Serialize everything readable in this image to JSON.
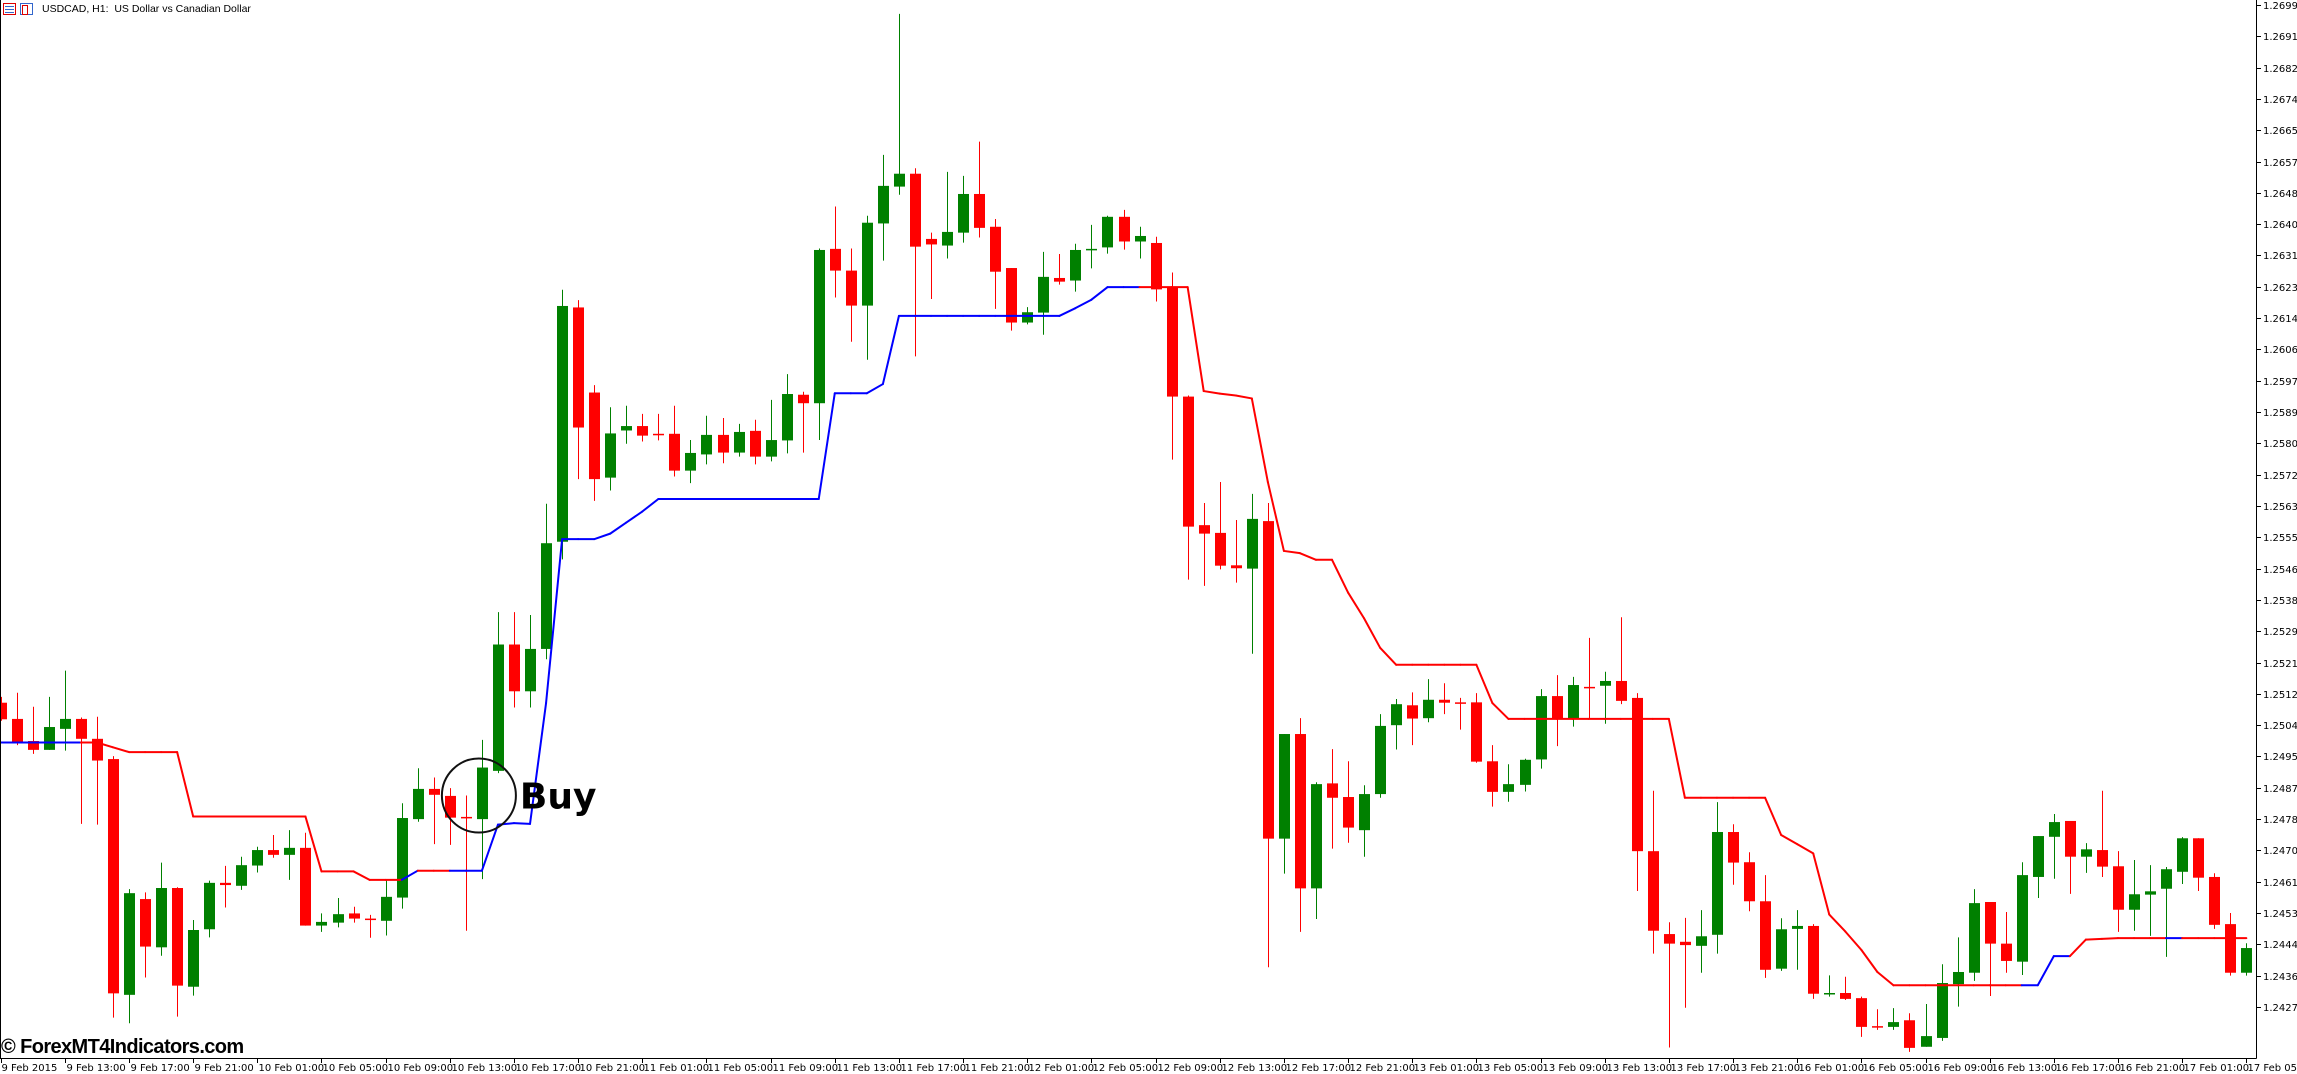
{
  "window": {
    "title": "USDCAD, H1:  US Dollar vs Canadian Dollar",
    "icons": [
      "list-window-icon",
      "tile-window-icon"
    ]
  },
  "watermark": "© ForexMT4Indicators.com",
  "colors": {
    "bull": "#008000",
    "bear": "#ff0000",
    "trend_up": "#0000ff",
    "trend_down": "#ff0000",
    "axis": "#000000",
    "background": "#ffffff"
  },
  "chart_data": {
    "type": "candlestick",
    "symbol": "USDCAD",
    "timeframe": "H1",
    "title": "USDCAD, H1:  US Dollar vs Canadian Dollar",
    "ylim": [
      1.2424,
      1.27009
    ],
    "grid": false,
    "y_ticks": [
      "1.26995",
      "1.26910",
      "1.26825",
      "1.26740",
      "1.26655",
      "1.26570",
      "1.26485",
      "1.26400",
      "1.26315",
      "1.26230",
      "1.26145",
      "1.26060",
      "1.25975",
      "1.25890",
      "1.25805",
      "1.25720",
      "1.25635",
      "1.25550",
      "1.25465",
      "1.25380",
      "1.25295",
      "1.25210",
      "1.25125",
      "1.25040",
      "1.24955",
      "1.24870",
      "1.24785",
      "1.24700",
      "1.24615",
      "1.24530",
      "1.24445",
      "1.24360",
      "1.24275"
    ],
    "x_ticks": [
      "9 Feb 2015",
      "9 Feb 13:00",
      "9 Feb 17:00",
      "9 Feb 21:00",
      "10 Feb 01:00",
      "10 Feb 05:00",
      "10 Feb 09:00",
      "10 Feb 13:00",
      "10 Feb 17:00",
      "10 Feb 21:00",
      "11 Feb 01:00",
      "11 Feb 05:00",
      "11 Feb 09:00",
      "11 Feb 13:00",
      "11 Feb 17:00",
      "11 Feb 21:00",
      "12 Feb 01:00",
      "12 Feb 05:00",
      "12 Feb 09:00",
      "12 Feb 13:00",
      "12 Feb 17:00",
      "12 Feb 21:00",
      "13 Feb 01:00",
      "13 Feb 05:00",
      "13 Feb 09:00",
      "13 Feb 13:00",
      "13 Feb 17:00",
      "13 Feb 21:00",
      "16 Feb 01:00",
      "16 Feb 05:00",
      "16 Feb 09:00",
      "16 Feb 13:00",
      "16 Feb 17:00",
      "16 Feb 21:00",
      "17 Feb 01:00",
      "17 Feb 05:00"
    ],
    "x_tick_every_bars": 4,
    "ohlc_fields": [
      "open",
      "high",
      "low",
      "close"
    ],
    "candles": [
      [
        1.25101,
        1.25117,
        1.25052,
        1.25056
      ],
      [
        1.25057,
        1.25128,
        1.24986,
        1.24993
      ],
      [
        1.24997,
        1.2509,
        1.24962,
        1.24973
      ],
      [
        1.24973,
        1.25117,
        1.24973,
        1.25035
      ],
      [
        1.2503,
        1.25188,
        1.24971,
        1.25057
      ],
      [
        1.25057,
        1.25061,
        1.24772,
        1.25003
      ],
      [
        1.25003,
        1.25063,
        1.2477,
        1.24944
      ],
      [
        1.24948,
        1.24956,
        1.24246,
        1.24312
      ],
      [
        1.24308,
        1.24595,
        1.24231,
        1.24584
      ],
      [
        1.24568,
        1.24586,
        1.24355,
        1.24439
      ],
      [
        1.24437,
        1.24667,
        1.24414,
        1.24598
      ],
      [
        1.24598,
        1.246,
        1.24249,
        1.24333
      ],
      [
        1.2433,
        1.24511,
        1.24306,
        1.24484
      ],
      [
        1.24486,
        1.24618,
        1.24464,
        1.24612
      ],
      [
        1.24612,
        1.24658,
        1.24545,
        1.24606
      ],
      [
        1.24604,
        1.24683,
        1.24593,
        1.2466
      ],
      [
        1.24659,
        1.2471,
        1.2464,
        1.24701
      ],
      [
        1.24701,
        1.24742,
        1.2468,
        1.24688
      ],
      [
        1.24688,
        1.24755,
        1.2462,
        1.24707
      ],
      [
        1.24707,
        1.24748,
        1.24496,
        1.24496
      ],
      [
        1.24496,
        1.24529,
        1.24479,
        1.24506
      ],
      [
        1.24504,
        1.24571,
        1.24491,
        1.24527
      ],
      [
        1.24529,
        1.24547,
        1.24504,
        1.24515
      ],
      [
        1.24515,
        1.24525,
        1.24463,
        1.24513
      ],
      [
        1.24509,
        1.2462,
        1.24469,
        1.24574
      ],
      [
        1.24572,
        1.24828,
        1.24542,
        1.24788
      ],
      [
        1.24785,
        1.24923,
        1.24778,
        1.24867
      ],
      [
        1.24867,
        1.24898,
        1.24717,
        1.24851
      ],
      [
        1.24848,
        1.24869,
        1.24715,
        1.24789
      ],
      [
        1.24791,
        1.24849,
        1.24482,
        1.24788
      ],
      [
        1.24785,
        1.25,
        1.24622,
        1.24925
      ],
      [
        1.24916,
        1.25347,
        1.2491,
        1.25259
      ],
      [
        1.25259,
        1.25347,
        1.25088,
        1.25132
      ],
      [
        1.25132,
        1.25339,
        1.25088,
        1.25247
      ],
      [
        1.25247,
        1.25641,
        1.25219,
        1.25534
      ],
      [
        1.25538,
        1.26222,
        1.2549,
        1.26178
      ],
      [
        1.26174,
        1.26194,
        1.25708,
        1.25848
      ],
      [
        1.25943,
        1.25963,
        1.25649,
        1.25708
      ],
      [
        1.25712,
        1.25903,
        1.25677,
        1.25832
      ],
      [
        1.2584,
        1.25907,
        1.25804,
        1.25852
      ],
      [
        1.25852,
        1.25885,
        1.2581,
        1.25826
      ],
      [
        1.25831,
        1.25885,
        1.25813,
        1.25829
      ],
      [
        1.25831,
        1.25907,
        1.25715,
        1.25731
      ],
      [
        1.25731,
        1.25814,
        1.25697,
        1.25779
      ],
      [
        1.25775,
        1.2588,
        1.25748,
        1.25828
      ],
      [
        1.25828,
        1.25874,
        1.25751,
        1.2578
      ],
      [
        1.2578,
        1.25858,
        1.25769,
        1.25836
      ],
      [
        1.25839,
        1.25869,
        1.25748,
        1.25769
      ],
      [
        1.25769,
        1.25923,
        1.25756,
        1.25814
      ],
      [
        1.25813,
        1.25993,
        1.25778,
        1.25939
      ],
      [
        1.25937,
        1.25945,
        1.2578,
        1.25914
      ],
      [
        1.25914,
        1.26334,
        1.25814,
        1.2633
      ],
      [
        1.26333,
        1.26448,
        1.26201,
        1.26274
      ],
      [
        1.26274,
        1.26334,
        1.26081,
        1.26179
      ],
      [
        1.26179,
        1.26423,
        1.26032,
        1.26404
      ],
      [
        1.26402,
        1.26588,
        1.26301,
        1.26504
      ],
      [
        1.26502,
        1.26971,
        1.2648,
        1.26537
      ],
      [
        1.26537,
        1.26552,
        1.26041,
        1.26339
      ],
      [
        1.2636,
        1.26377,
        1.26197,
        1.26345
      ],
      [
        1.26342,
        1.26542,
        1.26307,
        1.26379
      ],
      [
        1.26377,
        1.26531,
        1.2635,
        1.26482
      ],
      [
        1.26482,
        1.26624,
        1.26364,
        1.2639
      ],
      [
        1.26393,
        1.26414,
        1.2617,
        1.26271
      ],
      [
        1.26281,
        1.26281,
        1.26111,
        1.26133
      ],
      [
        1.26133,
        1.26175,
        1.26128,
        1.26161
      ],
      [
        1.2616,
        1.26325,
        1.261,
        1.26257
      ],
      [
        1.26254,
        1.26319,
        1.26236,
        1.26244
      ],
      [
        1.26247,
        1.26347,
        1.26217,
        1.2633
      ],
      [
        1.26329,
        1.26398,
        1.2628,
        1.26333
      ],
      [
        1.26337,
        1.26423,
        1.2632,
        1.2642
      ],
      [
        1.2642,
        1.26439,
        1.26331,
        1.26353
      ],
      [
        1.26353,
        1.26393,
        1.26307,
        1.26368
      ],
      [
        1.26349,
        1.26366,
        1.2619,
        1.26223
      ],
      [
        1.26228,
        1.26269,
        1.25761,
        1.25932
      ],
      [
        1.25932,
        1.25935,
        1.25435,
        1.25579
      ],
      [
        1.25583,
        1.25643,
        1.25418,
        1.2556
      ],
      [
        1.25562,
        1.257,
        1.25463,
        1.25473
      ],
      [
        1.25474,
        1.25597,
        1.25427,
        1.25466
      ],
      [
        1.25465,
        1.25668,
        1.25234,
        1.256
      ],
      [
        1.25594,
        1.25643,
        1.24383,
        1.24732
      ],
      [
        1.24732,
        1.25016,
        1.24637,
        1.25016
      ],
      [
        1.25016,
        1.25059,
        1.24479,
        1.24597
      ],
      [
        1.24597,
        1.24885,
        1.24514,
        1.2488
      ],
      [
        1.24882,
        1.24975,
        1.24705,
        1.24843
      ],
      [
        1.24845,
        1.24942,
        1.24721,
        1.24762
      ],
      [
        1.24755,
        1.24877,
        1.24683,
        1.24853
      ],
      [
        1.24853,
        1.2507,
        1.24843,
        1.25038
      ],
      [
        1.2504,
        1.25111,
        1.24974,
        1.25097
      ],
      [
        1.25094,
        1.25129,
        1.24986,
        1.25058
      ],
      [
        1.25059,
        1.25165,
        1.25048,
        1.25109
      ],
      [
        1.25109,
        1.25154,
        1.2507,
        1.25101
      ],
      [
        1.25102,
        1.25114,
        1.25028,
        1.251
      ],
      [
        1.25102,
        1.25127,
        1.24938,
        1.24941
      ],
      [
        1.24942,
        1.24986,
        1.24819,
        1.24859
      ],
      [
        1.24859,
        1.24934,
        1.24832,
        1.2488
      ],
      [
        1.24878,
        1.24949,
        1.2486,
        1.24946
      ],
      [
        1.24947,
        1.25138,
        1.24922,
        1.25119
      ],
      [
        1.25119,
        1.25176,
        1.24983,
        1.25057
      ],
      [
        1.25057,
        1.25171,
        1.25036,
        1.25149
      ],
      [
        1.25144,
        1.25277,
        1.25057,
        1.25142
      ],
      [
        1.25147,
        1.25185,
        1.25044,
        1.2516
      ],
      [
        1.2516,
        1.25333,
        1.25097,
        1.25106
      ],
      [
        1.25114,
        1.25127,
        1.2459,
        1.24698
      ],
      [
        1.24698,
        1.24862,
        1.2442,
        1.24482
      ],
      [
        1.24473,
        1.24505,
        1.24165,
        1.24447
      ],
      [
        1.24452,
        1.24517,
        1.24273,
        1.24443
      ],
      [
        1.24441,
        1.24538,
        1.24368,
        1.24467
      ],
      [
        1.24471,
        1.24831,
        1.2442,
        1.2475
      ],
      [
        1.2475,
        1.24771,
        1.24607,
        1.24667
      ],
      [
        1.24668,
        1.24695,
        1.24535,
        1.24562
      ],
      [
        1.24562,
        1.24633,
        1.24354,
        1.24376
      ],
      [
        1.24379,
        1.24516,
        1.24373,
        1.24486
      ],
      [
        1.24487,
        1.24538,
        1.24376,
        1.24495
      ],
      [
        1.24495,
        1.245,
        1.24297,
        1.24311
      ],
      [
        1.24311,
        1.24361,
        1.24303,
        1.24313
      ],
      [
        1.24313,
        1.24357,
        1.24294,
        1.24297
      ],
      [
        1.24299,
        1.24303,
        1.24194,
        1.24221
      ],
      [
        1.24223,
        1.24269,
        1.24213,
        1.24221
      ],
      [
        1.24221,
        1.24272,
        1.24213,
        1.24234
      ],
      [
        1.24239,
        1.24258,
        1.24153,
        1.24164
      ],
      [
        1.24167,
        1.24283,
        1.24167,
        1.24196
      ],
      [
        1.24191,
        1.24391,
        1.24183,
        1.2434
      ],
      [
        1.24337,
        1.24464,
        1.24276,
        1.2437
      ],
      [
        1.24368,
        1.24595,
        1.24346,
        1.24557
      ],
      [
        1.2456,
        1.2456,
        1.24305,
        1.24447
      ],
      [
        1.24447,
        1.24533,
        1.24368,
        1.244
      ],
      [
        1.24398,
        1.24668,
        1.24362,
        1.24633
      ],
      [
        1.24628,
        1.24739,
        1.24571,
        1.24739
      ],
      [
        1.24737,
        1.24799,
        1.24623,
        1.24777
      ],
      [
        1.2478,
        1.2478,
        1.24582,
        1.24683
      ],
      [
        1.24683,
        1.2472,
        1.24639,
        1.24703
      ],
      [
        1.24701,
        1.24862,
        1.24628,
        1.24656
      ],
      [
        1.24657,
        1.24698,
        1.24479,
        1.24539
      ],
      [
        1.24539,
        1.24674,
        1.24482,
        1.24581
      ],
      [
        1.2458,
        1.2466,
        1.24468,
        1.24589
      ],
      [
        1.24596,
        1.24655,
        1.24411,
        1.24649
      ],
      [
        1.24642,
        1.24736,
        1.24609,
        1.24733
      ],
      [
        1.24733,
        1.24733,
        1.2459,
        1.24626
      ],
      [
        1.24628,
        1.24638,
        1.24487,
        1.24498
      ],
      [
        1.245,
        1.2453,
        1.2436,
        1.24368
      ],
      [
        1.24368,
        1.24448,
        1.2436,
        1.24435
      ]
    ],
    "trend_line": {
      "values": [
        1.24993,
        1.24993,
        1.24993,
        1.24993,
        1.24993,
        1.24993,
        1.24993,
        1.2498,
        1.24967,
        1.24967,
        1.24967,
        1.24967,
        1.24792,
        1.24792,
        1.24792,
        1.24792,
        1.24792,
        1.24792,
        1.24792,
        1.24792,
        1.24643,
        1.24643,
        1.24643,
        1.2462,
        1.2462,
        1.2462,
        1.24645,
        1.24645,
        1.24645,
        1.24645,
        1.24645,
        1.2477,
        1.24774,
        1.24772,
        1.251,
        1.25545,
        1.25545,
        1.25545,
        1.2556,
        1.2559,
        1.2562,
        1.25654,
        1.25654,
        1.25654,
        1.25654,
        1.25654,
        1.25654,
        1.25654,
        1.25654,
        1.25654,
        1.25654,
        1.25654,
        1.25941,
        1.25941,
        1.25941,
        1.25966,
        1.26151,
        1.26151,
        1.26151,
        1.26151,
        1.26151,
        1.26151,
        1.26151,
        1.26151,
        1.26151,
        1.26151,
        1.26151,
        1.26172,
        1.26195,
        1.26229,
        1.26229,
        1.26229,
        1.26229,
        1.26229,
        1.26229,
        1.25947,
        1.2594,
        1.25935,
        1.25927,
        1.257,
        1.25513,
        1.25507,
        1.25489,
        1.25489,
        1.254,
        1.2533,
        1.2525,
        1.25204,
        1.25204,
        1.25204,
        1.25204,
        1.25204,
        1.25204,
        1.251,
        1.25057,
        1.25057,
        1.25057,
        1.25057,
        1.25057,
        1.25057,
        1.25057,
        1.25057,
        1.25057,
        1.25057,
        1.25057,
        1.24843,
        1.24843,
        1.24843,
        1.24843,
        1.24843,
        1.24843,
        1.24742,
        1.24717,
        1.24692,
        1.24526,
        1.2448,
        1.2443,
        1.2437,
        1.24334,
        1.24334,
        1.24334,
        1.24334,
        1.24334,
        1.24334,
        1.24334,
        1.24334,
        1.24334,
        1.24334,
        1.24413,
        1.24413,
        1.24458,
        1.2446,
        1.24462,
        1.24462,
        1.24462,
        1.24462,
        1.24462,
        1.24462,
        1.24462,
        1.24462,
        1.24462
      ],
      "trend": "uuuuuuddddddddddddddddddddudduuuuuuuuuuuuuuuuuuuuuuuuuuuuuuuuuuuuuuuuuuuddddddddddddddddddddddddddddddddddddddddddddddddddddddduuuddddddudddd"
    },
    "annotations": [
      {
        "text": "Buy",
        "bar": 30,
        "price": 1.24849,
        "marker": "circle"
      }
    ]
  }
}
